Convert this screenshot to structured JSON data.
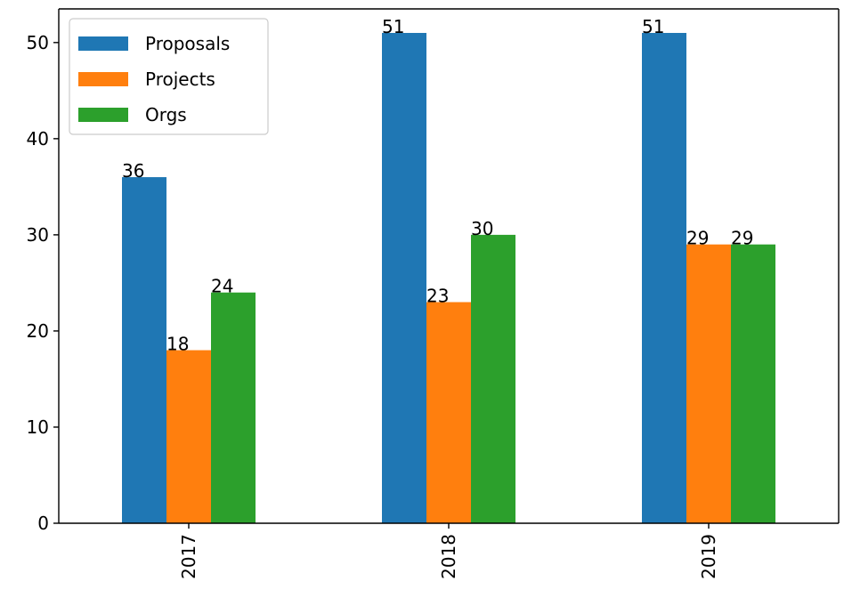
{
  "chart_data": {
    "type": "bar",
    "title": "",
    "xlabel": "",
    "ylabel": "",
    "categories": [
      "2017",
      "2018",
      "2019"
    ],
    "series": [
      {
        "name": "Proposals",
        "color": "#1f77b4",
        "values": [
          36,
          51,
          51
        ]
      },
      {
        "name": "Projects",
        "color": "#ff7f0e",
        "values": [
          18,
          23,
          29
        ]
      },
      {
        "name": "Orgs",
        "color": "#2ca02c",
        "values": [
          24,
          30,
          29
        ]
      }
    ],
    "ylim": [
      0,
      53.5
    ],
    "yticks": [
      0,
      10,
      20,
      30,
      40,
      50
    ],
    "grid": false,
    "legend_position": "top-left",
    "x_tick_rotation": "vertical"
  }
}
